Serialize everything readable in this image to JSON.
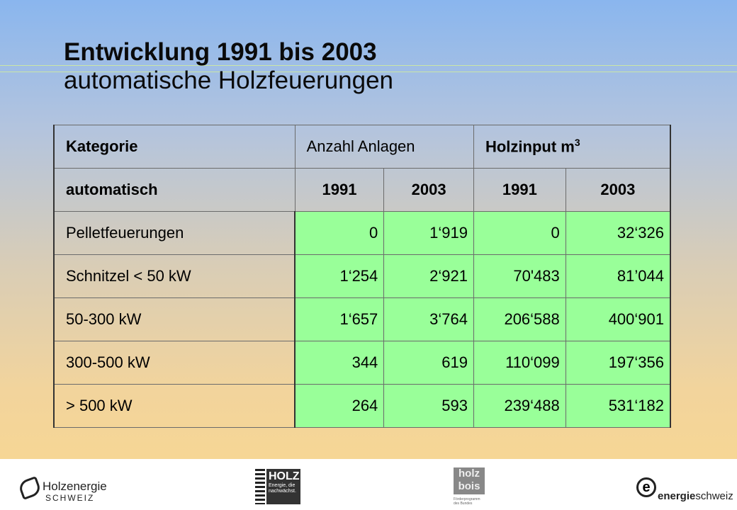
{
  "title": {
    "line1": "Entwicklung 1991 bis 2003",
    "line2": "automatische Holzfeuerungen"
  },
  "table": {
    "header1": {
      "kategorie": "Kategorie",
      "anzahl": "Anzahl Anlagen",
      "holzinput": "Holzinput m",
      "holzinput_sup": "3"
    },
    "header2": {
      "automatisch": "automatisch",
      "y1": "1991",
      "y2": "2003",
      "y3": "1991",
      "y4": "2003"
    },
    "rows": [
      {
        "label": "Pelletfeuerungen",
        "a1991": "0",
        "a2003": "1‘919",
        "h1991": "0",
        "h2003": "32‘326"
      },
      {
        "label": "Schnitzel < 50 kW",
        "a1991": "1‘254",
        "a2003": "2‘921",
        "h1991": "70'483",
        "h2003": "81’044"
      },
      {
        "label": "50-300 kW",
        "a1991": "1‘657",
        "a2003": "3‘764",
        "h1991": "206‘588",
        "h2003": "400‘901"
      },
      {
        "label": "300-500 kW",
        "a1991": "344",
        "a2003": "619",
        "h1991": "110‘099",
        "h2003": "197‘356"
      },
      {
        "label": "> 500 kW",
        "a1991": "264",
        "a2003": "593",
        "h1991": "239‘488",
        "h2003": "531‘182"
      }
    ]
  },
  "footer": {
    "holzenergie": {
      "name": "Holzenergie",
      "sub": "SCHWEIZ"
    },
    "holz_badge": {
      "big": "HOLZ",
      "small": "Energie, die nachwächst."
    },
    "bois": {
      "mark": "holz bois",
      "caption": "Förderprogramm des Bundes"
    },
    "energieschweiz": {
      "bold": "energie",
      "rest": "schweiz"
    }
  }
}
